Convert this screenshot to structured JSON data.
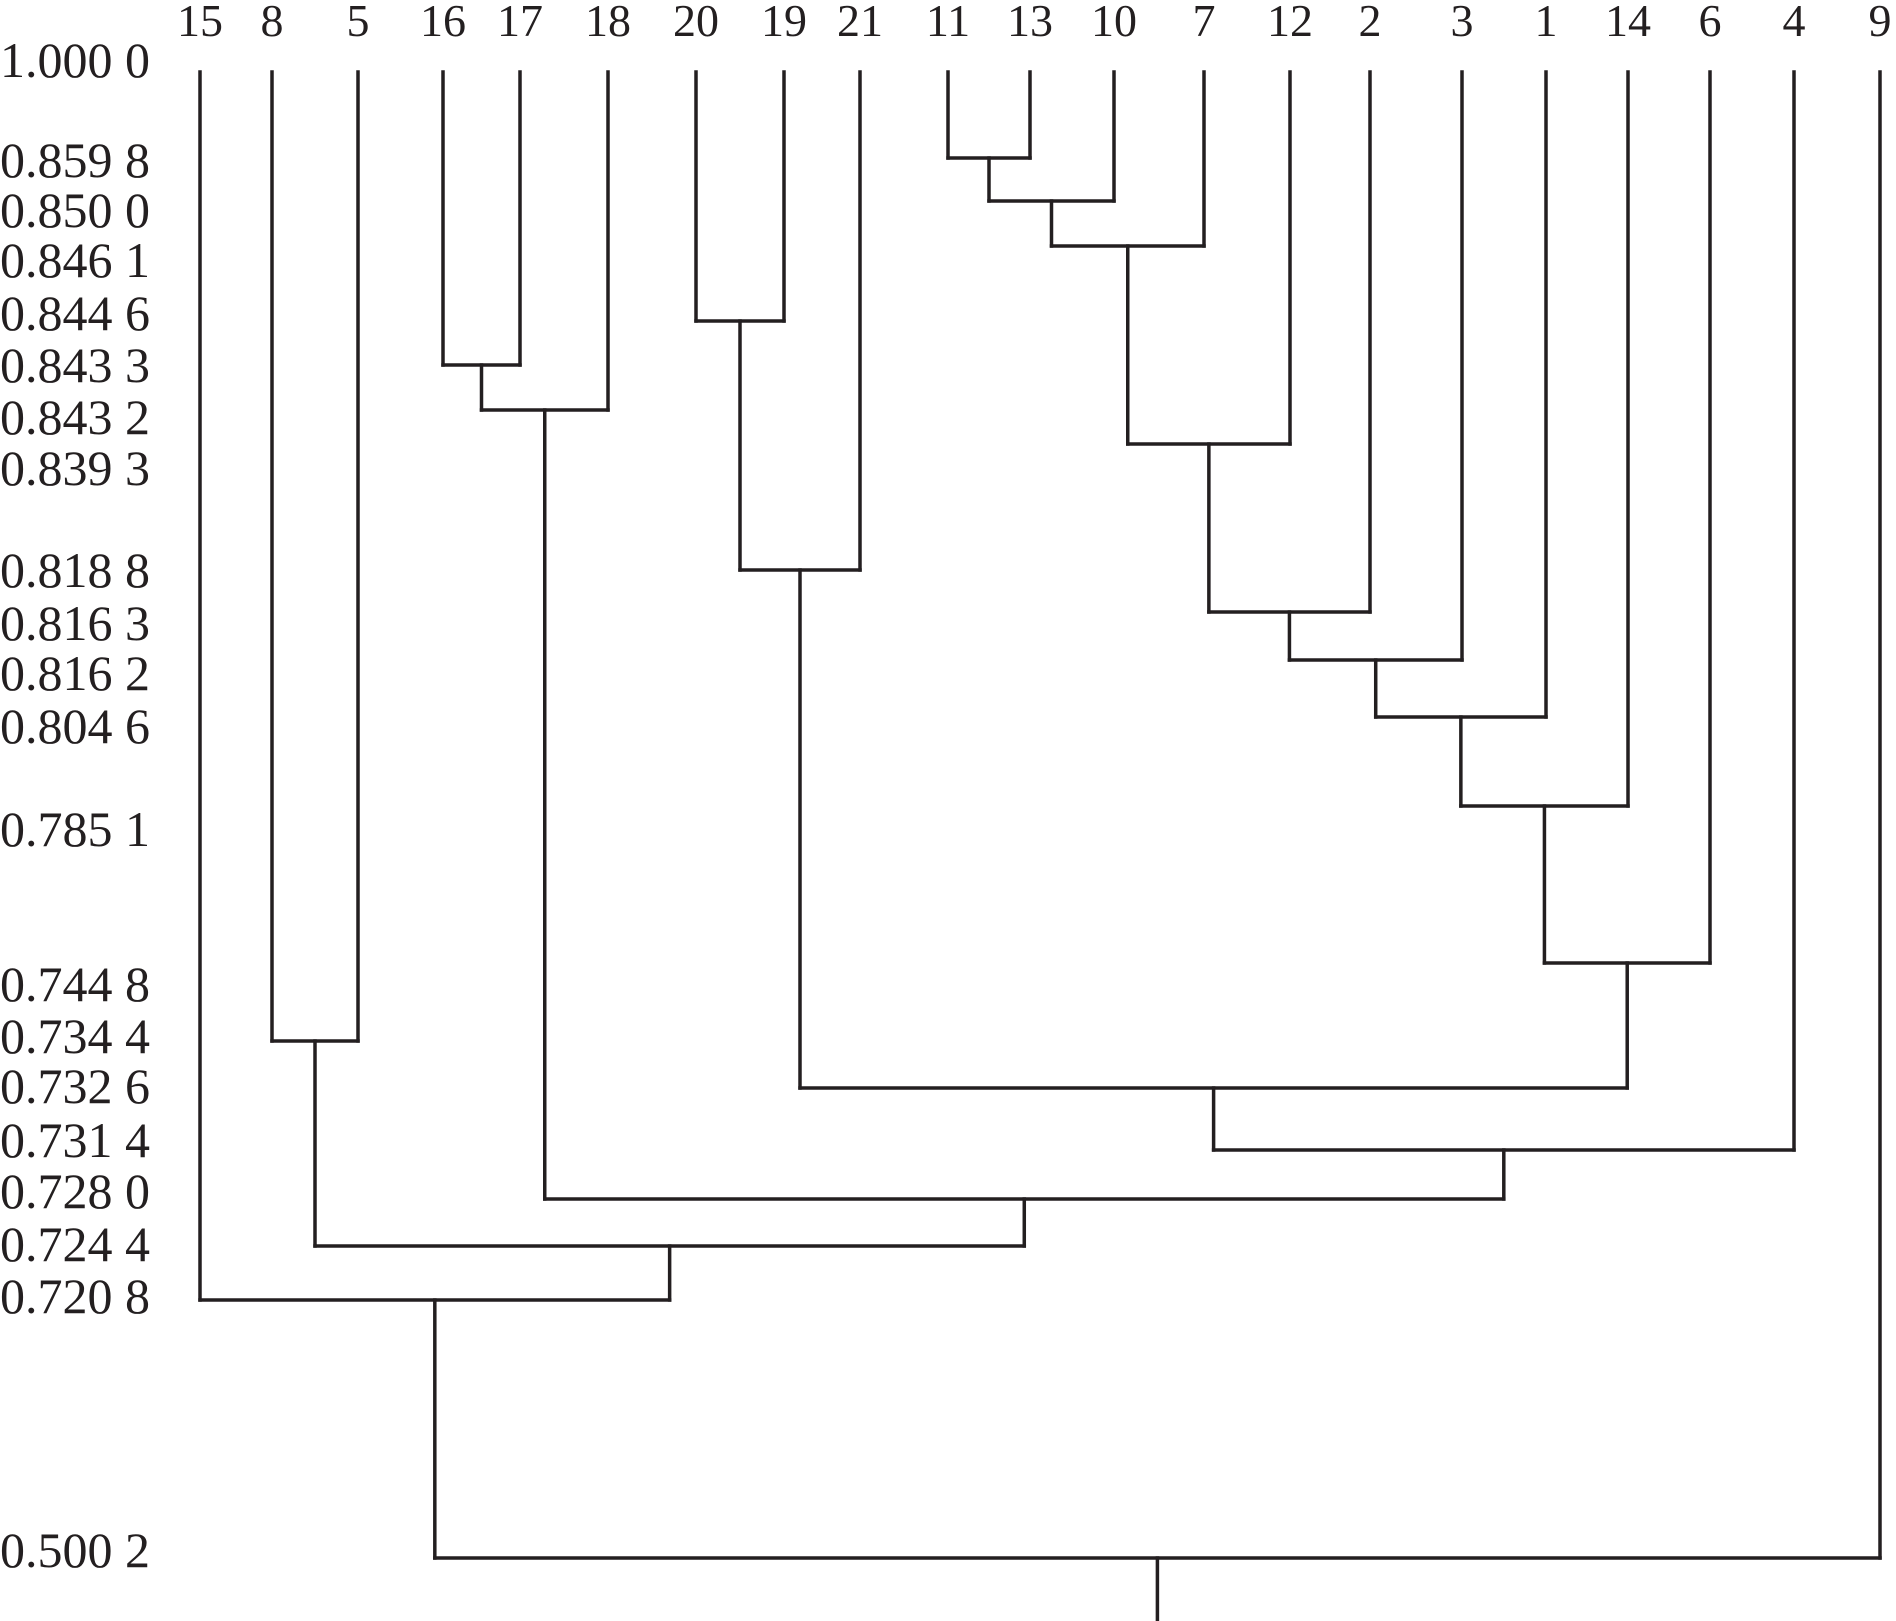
{
  "diagram": {
    "type": "dendrogram",
    "leaves": [
      "15",
      "8",
      "5",
      "16",
      "17",
      "18",
      "20",
      "19",
      "21",
      "11",
      "13",
      "10",
      "7",
      "12",
      "2",
      "3",
      "1",
      "14",
      "6",
      "4",
      "9"
    ],
    "similarity_levels": [
      "1.000 0",
      "0.859 8",
      "0.850 0",
      "0.846 1",
      "0.844 6",
      "0.843 3",
      "0.843 2",
      "0.839 3",
      "0.818 8",
      "0.816 3",
      "0.816 2",
      "0.804 6",
      "0.785 1",
      "0.744 8",
      "0.734 4",
      "0.732 6",
      "0.731 4",
      "0.728 0",
      "0.724 4",
      "0.720 8",
      "0.500 2"
    ],
    "merges": [
      {
        "a": "11",
        "b": "13",
        "level": 0.8598
      },
      {
        "a": "11+13",
        "b": "10",
        "level": 0.85
      },
      {
        "a": "11+13+10",
        "b": "7",
        "level": 0.8461
      },
      {
        "a": "20",
        "b": "19",
        "level": 0.8446
      },
      {
        "a": "16",
        "b": "17",
        "level": 0.8433
      },
      {
        "a": "16+17",
        "b": "18",
        "level": 0.8432
      },
      {
        "a": "11..7",
        "b": "12",
        "level": 0.8393
      },
      {
        "a": "20+19",
        "b": "21",
        "level": 0.8188
      },
      {
        "a": "11..12",
        "b": "2",
        "level": 0.8163
      },
      {
        "a": "11..2",
        "b": "3",
        "level": 0.8162
      },
      {
        "a": "11..3",
        "b": "1",
        "level": 0.8046
      },
      {
        "a": "11..1",
        "b": "14",
        "level": 0.7851
      },
      {
        "a": "11..14",
        "b": "6",
        "level": 0.7448
      },
      {
        "a": "8",
        "b": "5",
        "level": 0.7344
      },
      {
        "a": "20+19+21",
        "b": "11..6",
        "level": 0.7326
      },
      {
        "a": "20..6",
        "b": "4",
        "level": 0.7314
      },
      {
        "a": "16+17+18",
        "b": "20..4",
        "level": 0.728
      },
      {
        "a": "8+5",
        "b": "16..4",
        "level": 0.7244
      },
      {
        "a": "15",
        "b": "8..4",
        "level": 0.7208
      },
      {
        "a": "15..4",
        "b": "9",
        "level": 0.5002
      }
    ]
  }
}
